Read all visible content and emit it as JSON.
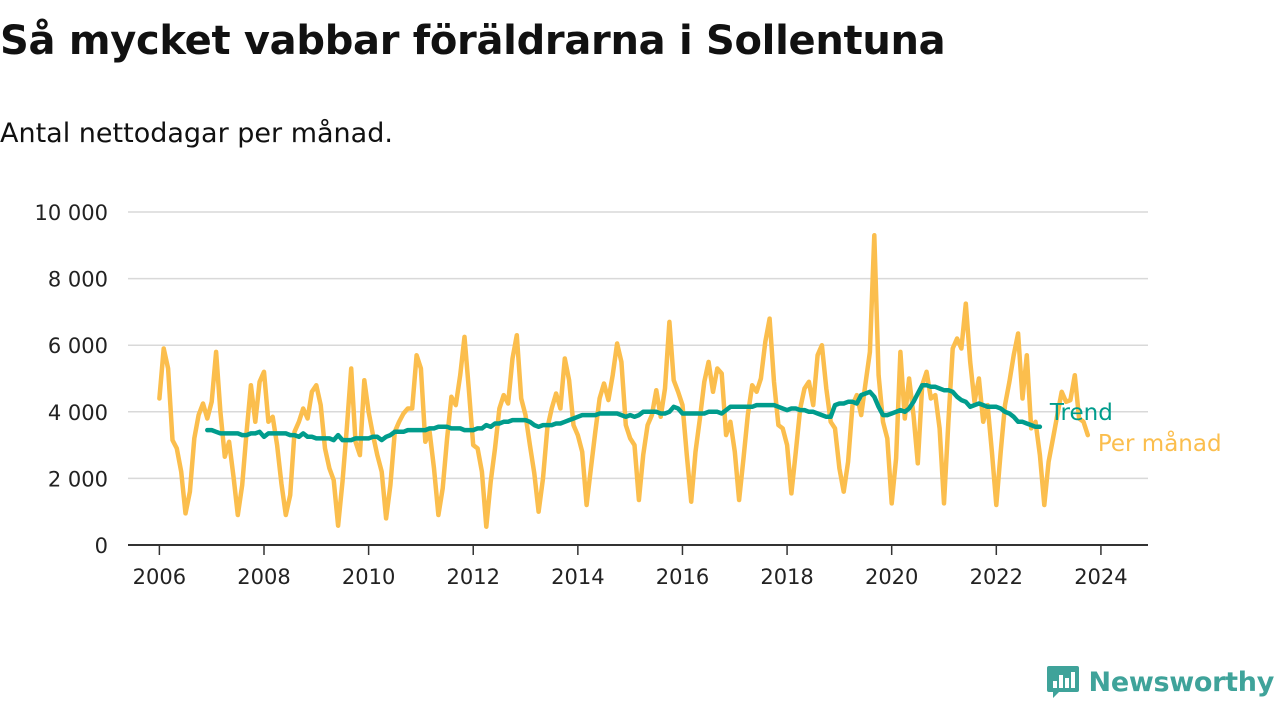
{
  "title": "Så mycket vabbar föräldrarna i Sollentuna",
  "subtitle": "Antal nettodagar per månad.",
  "brand": {
    "name": "Newsworthy",
    "color": "#3fa39a",
    "logo_icon": "bar-chart-icon"
  },
  "colors": {
    "monthly": "#fbbe4d",
    "trend": "#009c8c",
    "grid": "#d9d9d9",
    "axis": "#333333"
  },
  "chart_data": {
    "type": "line",
    "title": "Så mycket vabbar föräldrarna i Sollentuna",
    "subtitle": "Antal nettodagar per månad.",
    "xlabel": "",
    "ylabel": "",
    "xlim": [
      2005.4,
      2024.9
    ],
    "ylim": [
      0,
      10000
    ],
    "x_ticks": [
      2006,
      2008,
      2010,
      2012,
      2014,
      2016,
      2018,
      2020,
      2022,
      2024
    ],
    "y_ticks": [
      0,
      2000,
      4000,
      6000,
      8000,
      10000
    ],
    "x_tick_labels": [
      "2006",
      "2008",
      "2010",
      "2012",
      "2014",
      "2016",
      "2018",
      "2020",
      "2022",
      "2024"
    ],
    "y_tick_labels": [
      "0",
      "2 000",
      "4 000",
      "6 000",
      "8 000",
      "10 000"
    ],
    "grid": true,
    "legend_position": "inline-right",
    "series": [
      {
        "name": "Per månad",
        "color": "#fbbe4d",
        "start": "2006-01",
        "values": [
          4400,
          5900,
          5300,
          3150,
          2900,
          2200,
          950,
          1600,
          3200,
          3900,
          4250,
          3800,
          4300,
          5800,
          4000,
          2650,
          3100,
          2050,
          900,
          1800,
          3400,
          4800,
          3700,
          4900,
          5200,
          3700,
          3850,
          3000,
          1850,
          900,
          1500,
          3400,
          3700,
          4100,
          3800,
          4600,
          4800,
          4200,
          2900,
          2300,
          1950,
          580,
          1900,
          3500,
          5300,
          3100,
          2700,
          4950,
          4000,
          3300,
          2700,
          2200,
          800,
          1800,
          3400,
          3700,
          3950,
          4100,
          4100,
          5700,
          5300,
          3100,
          3400,
          2300,
          900,
          1700,
          3200,
          4450,
          4200,
          5100,
          6250,
          4650,
          3000,
          2900,
          2200,
          550,
          1900,
          2900,
          4100,
          4500,
          4250,
          5600,
          6300,
          4400,
          3900,
          3000,
          2150,
          1000,
          2000,
          3500,
          4100,
          4550,
          4100,
          5600,
          4950,
          3600,
          3300,
          2800,
          1200,
          2300,
          3400,
          4400,
          4850,
          4350,
          5100,
          6050,
          5500,
          3600,
          3200,
          3000,
          1350,
          2700,
          3600,
          3900,
          4650,
          3850,
          4700,
          6700,
          4950,
          4600,
          4200,
          2700,
          1300,
          2800,
          3800,
          4900,
          5500,
          4600,
          5300,
          5150,
          3300,
          3700,
          2800,
          1350,
          2600,
          3900,
          4800,
          4600,
          5000,
          6100,
          6800,
          4900,
          3600,
          3500,
          3000,
          1550,
          2800,
          4100,
          4700,
          4900,
          4200,
          5700,
          6000,
          4700,
          3700,
          3500,
          2300,
          1600,
          2500,
          4200,
          4500,
          3900,
          4850,
          5800,
          9300,
          5100,
          3700,
          3200,
          1250,
          2600,
          5800,
          3800,
          5000,
          3900,
          2450,
          4800,
          5200,
          4400,
          4500,
          3500,
          1250,
          3700,
          5900,
          6200,
          5900,
          7250,
          5500,
          4300,
          5000,
          3700,
          4200,
          2800,
          1200,
          2800,
          4200,
          4900,
          5700,
          6350,
          4400,
          5700,
          3500,
          3700,
          2700,
          1200,
          2500,
          3200,
          3900,
          4600,
          4300,
          4350,
          5100,
          3800,
          3700,
          3300
        ]
      },
      {
        "name": "Trend",
        "color": "#009c8c",
        "start": "2006-12",
        "values": [
          3450,
          3450,
          3400,
          3350,
          3350,
          3350,
          3350,
          3350,
          3300,
          3300,
          3350,
          3350,
          3400,
          3250,
          3350,
          3350,
          3350,
          3350,
          3350,
          3300,
          3300,
          3250,
          3350,
          3250,
          3250,
          3200,
          3200,
          3200,
          3200,
          3150,
          3300,
          3150,
          3150,
          3150,
          3200,
          3200,
          3200,
          3200,
          3250,
          3250,
          3150,
          3250,
          3300,
          3400,
          3400,
          3400,
          3450,
          3450,
          3450,
          3450,
          3450,
          3500,
          3500,
          3550,
          3550,
          3550,
          3500,
          3500,
          3500,
          3450,
          3450,
          3450,
          3500,
          3500,
          3600,
          3550,
          3650,
          3650,
          3700,
          3700,
          3750,
          3750,
          3750,
          3750,
          3700,
          3600,
          3550,
          3600,
          3600,
          3600,
          3650,
          3650,
          3700,
          3750,
          3800,
          3850,
          3900,
          3900,
          3900,
          3900,
          3950,
          3950,
          3950,
          3950,
          3950,
          3900,
          3850,
          3900,
          3850,
          3900,
          4000,
          4000,
          4000,
          4000,
          3950,
          3950,
          4000,
          4150,
          4100,
          3950,
          3950,
          3950,
          3950,
          3950,
          3950,
          4000,
          4000,
          4000,
          3950,
          4050,
          4150,
          4150,
          4150,
          4150,
          4150,
          4150,
          4200,
          4200,
          4200,
          4200,
          4200,
          4150,
          4100,
          4050,
          4100,
          4100,
          4050,
          4050,
          4000,
          4000,
          3950,
          3900,
          3850,
          3850,
          4200,
          4250,
          4250,
          4300,
          4300,
          4250,
          4500,
          4550,
          4600,
          4450,
          4150,
          3900,
          3900,
          3950,
          4000,
          4050,
          4000,
          4100,
          4300,
          4550,
          4800,
          4800,
          4750,
          4750,
          4700,
          4650,
          4650,
          4600,
          4450,
          4350,
          4300,
          4150,
          4200,
          4250,
          4200,
          4150,
          4150,
          4150,
          4100,
          4000,
          3950,
          3850,
          3700,
          3700,
          3650,
          3600,
          3550,
          3550
        ]
      }
    ]
  }
}
